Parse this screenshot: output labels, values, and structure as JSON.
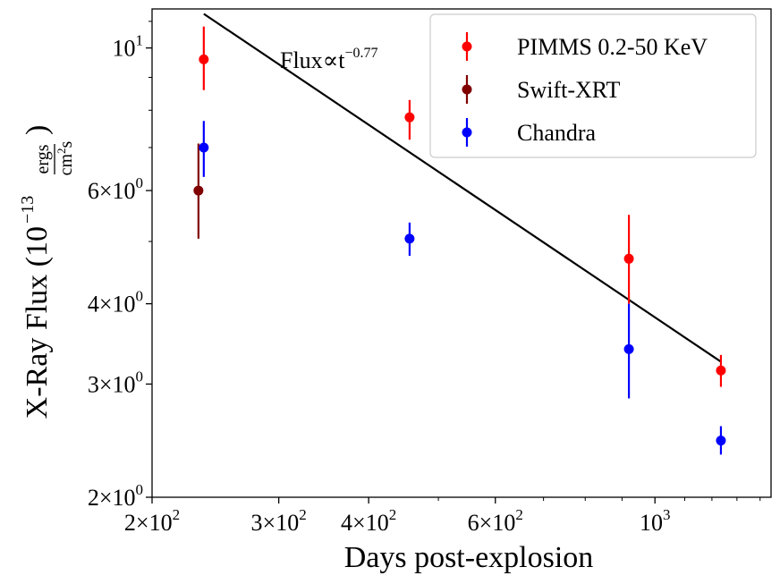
{
  "chart_data": {
    "type": "scatter",
    "xscale": "log",
    "yscale": "log",
    "xlabel": "Days post-explosion",
    "ylabel": {
      "main": "X-Ray Flux (10",
      "exp": "−13",
      "num": "ergs",
      "den": "cm",
      "den_exp": "2",
      "den_tail": "s",
      "close": ")"
    },
    "xlim": [
      200,
      1450
    ],
    "ylim": [
      2,
      11.5
    ],
    "xticks": [
      {
        "value": 200,
        "mant": "2×10",
        "exp": "2"
      },
      {
        "value": 300,
        "mant": "3×10",
        "exp": "2"
      },
      {
        "value": 400,
        "mant": "4×10",
        "exp": "2"
      },
      {
        "value": 600,
        "mant": "6×10",
        "exp": "2"
      },
      {
        "value": 1000,
        "mant": "10",
        "exp": "3"
      }
    ],
    "yticks": [
      {
        "value": 2,
        "mant": "2×10",
        "exp": "0"
      },
      {
        "value": 3,
        "mant": "3×10",
        "exp": "0"
      },
      {
        "value": 4,
        "mant": "4×10",
        "exp": "0"
      },
      {
        "value": 6,
        "mant": "6×10",
        "exp": "0"
      },
      {
        "value": 10,
        "mant": "10",
        "exp": "1"
      }
    ],
    "series": [
      {
        "name": "PIMMS 0.2-50 KeV",
        "color": "#ff0000",
        "points": [
          {
            "x": 236,
            "y": 9.6,
            "ylo": 8.6,
            "yhi": 10.8
          },
          {
            "x": 456,
            "y": 7.8,
            "ylo": 7.2,
            "yhi": 8.3
          },
          {
            "x": 920,
            "y": 4.7,
            "ylo": 4.0,
            "yhi": 5.5
          },
          {
            "x": 1235,
            "y": 3.15,
            "ylo": 2.97,
            "yhi": 3.33
          }
        ]
      },
      {
        "name": "Swift-XRT",
        "color": "#800000",
        "points": [
          {
            "x": 232,
            "y": 6.0,
            "ylo": 5.05,
            "yhi": 7.1
          }
        ]
      },
      {
        "name": "Chandra",
        "color": "#0000ff",
        "points": [
          {
            "x": 236,
            "y": 7.0,
            "ylo": 6.3,
            "yhi": 7.7
          },
          {
            "x": 456,
            "y": 5.05,
            "ylo": 4.75,
            "yhi": 5.35
          },
          {
            "x": 920,
            "y": 3.4,
            "ylo": 2.85,
            "yhi": 4.0
          },
          {
            "x": 1235,
            "y": 2.45,
            "ylo": 2.33,
            "yhi": 2.58
          }
        ]
      }
    ],
    "fit_line": {
      "color": "#000000",
      "x_start": 236,
      "y_start": 11.3,
      "x_end": 1235,
      "y_end": 3.25
    },
    "annotation": {
      "text": "Flux∝t",
      "exp": "−0.77"
    },
    "legend": {
      "position": "top-right"
    }
  }
}
